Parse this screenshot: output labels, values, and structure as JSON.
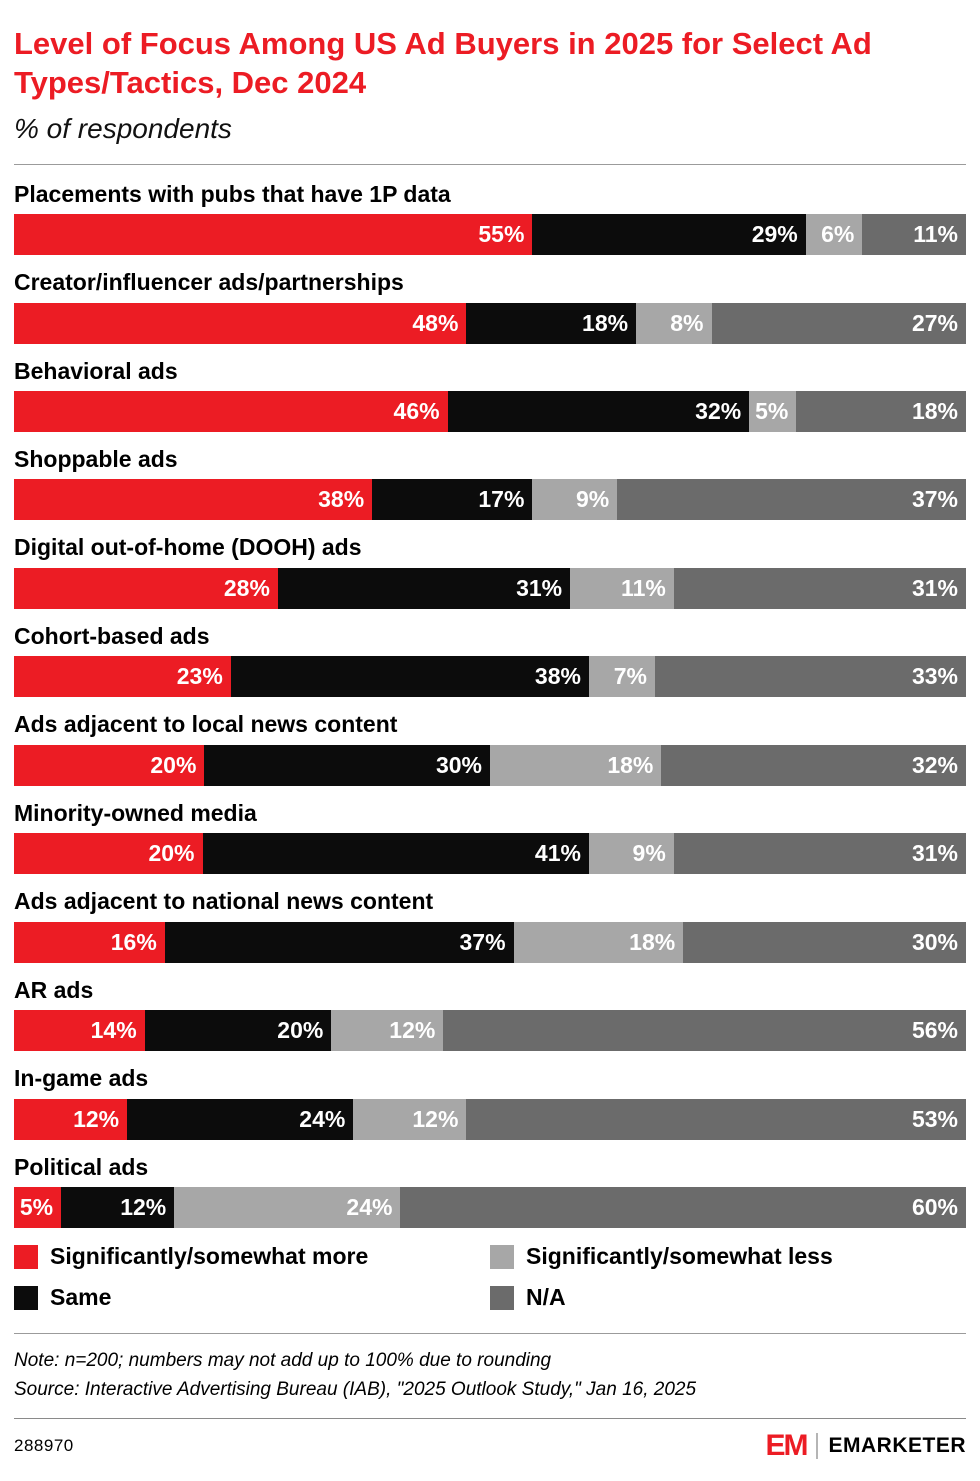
{
  "header": {
    "title": "Level of Focus Among US Ad Buyers in 2025 for Select Ad Types/Tactics, Dec 2024",
    "subtitle": "% of respondents"
  },
  "chart_data": {
    "type": "bar",
    "orientation": "horizontal",
    "stacked": true,
    "unit": "%",
    "value_suffix": "%",
    "categories": [
      "Placements with pubs that have 1P data",
      "Creator/influencer ads/partnerships",
      "Behavioral ads",
      "Shoppable ads",
      "Digital out-of-home (DOOH) ads",
      "Cohort-based ads",
      "Ads adjacent to local news content",
      "Minority-owned media",
      "Ads adjacent to national news content",
      "AR ads",
      "In-game ads",
      "Political ads"
    ],
    "series": [
      {
        "name": "Significantly/somewhat more",
        "color": "#ec1c24",
        "values": [
          55,
          48,
          46,
          38,
          28,
          23,
          20,
          20,
          16,
          14,
          12,
          5
        ]
      },
      {
        "name": "Same",
        "color": "#0c0c0c",
        "values": [
          29,
          18,
          32,
          17,
          31,
          38,
          30,
          41,
          37,
          20,
          24,
          12
        ]
      },
      {
        "name": "Significantly/somewhat less",
        "color": "#a7a7a7",
        "values": [
          6,
          8,
          5,
          9,
          11,
          7,
          18,
          9,
          18,
          12,
          12,
          24
        ]
      },
      {
        "name": "N/A",
        "color": "#6b6b6b",
        "values": [
          11,
          27,
          18,
          37,
          31,
          33,
          32,
          31,
          30,
          56,
          53,
          60
        ]
      }
    ],
    "legend_position": "bottom",
    "grid": false
  },
  "legend": {
    "items": [
      {
        "label": "Significantly/somewhat more",
        "color": "#ec1c24"
      },
      {
        "label": "Significantly/somewhat less",
        "color": "#a7a7a7"
      },
      {
        "label": "Same",
        "color": "#0c0c0c"
      },
      {
        "label": "N/A",
        "color": "#6b6b6b"
      }
    ]
  },
  "notes": {
    "note": "Note: n=200; numbers may not add up to 100% due to rounding",
    "source": "Source: Interactive Advertising Bureau (IAB), \"2025 Outlook Study,\" Jan 16, 2025"
  },
  "footer": {
    "chart_id": "288970",
    "brand_mark": "EM",
    "brand_name": "EMARKETER"
  }
}
